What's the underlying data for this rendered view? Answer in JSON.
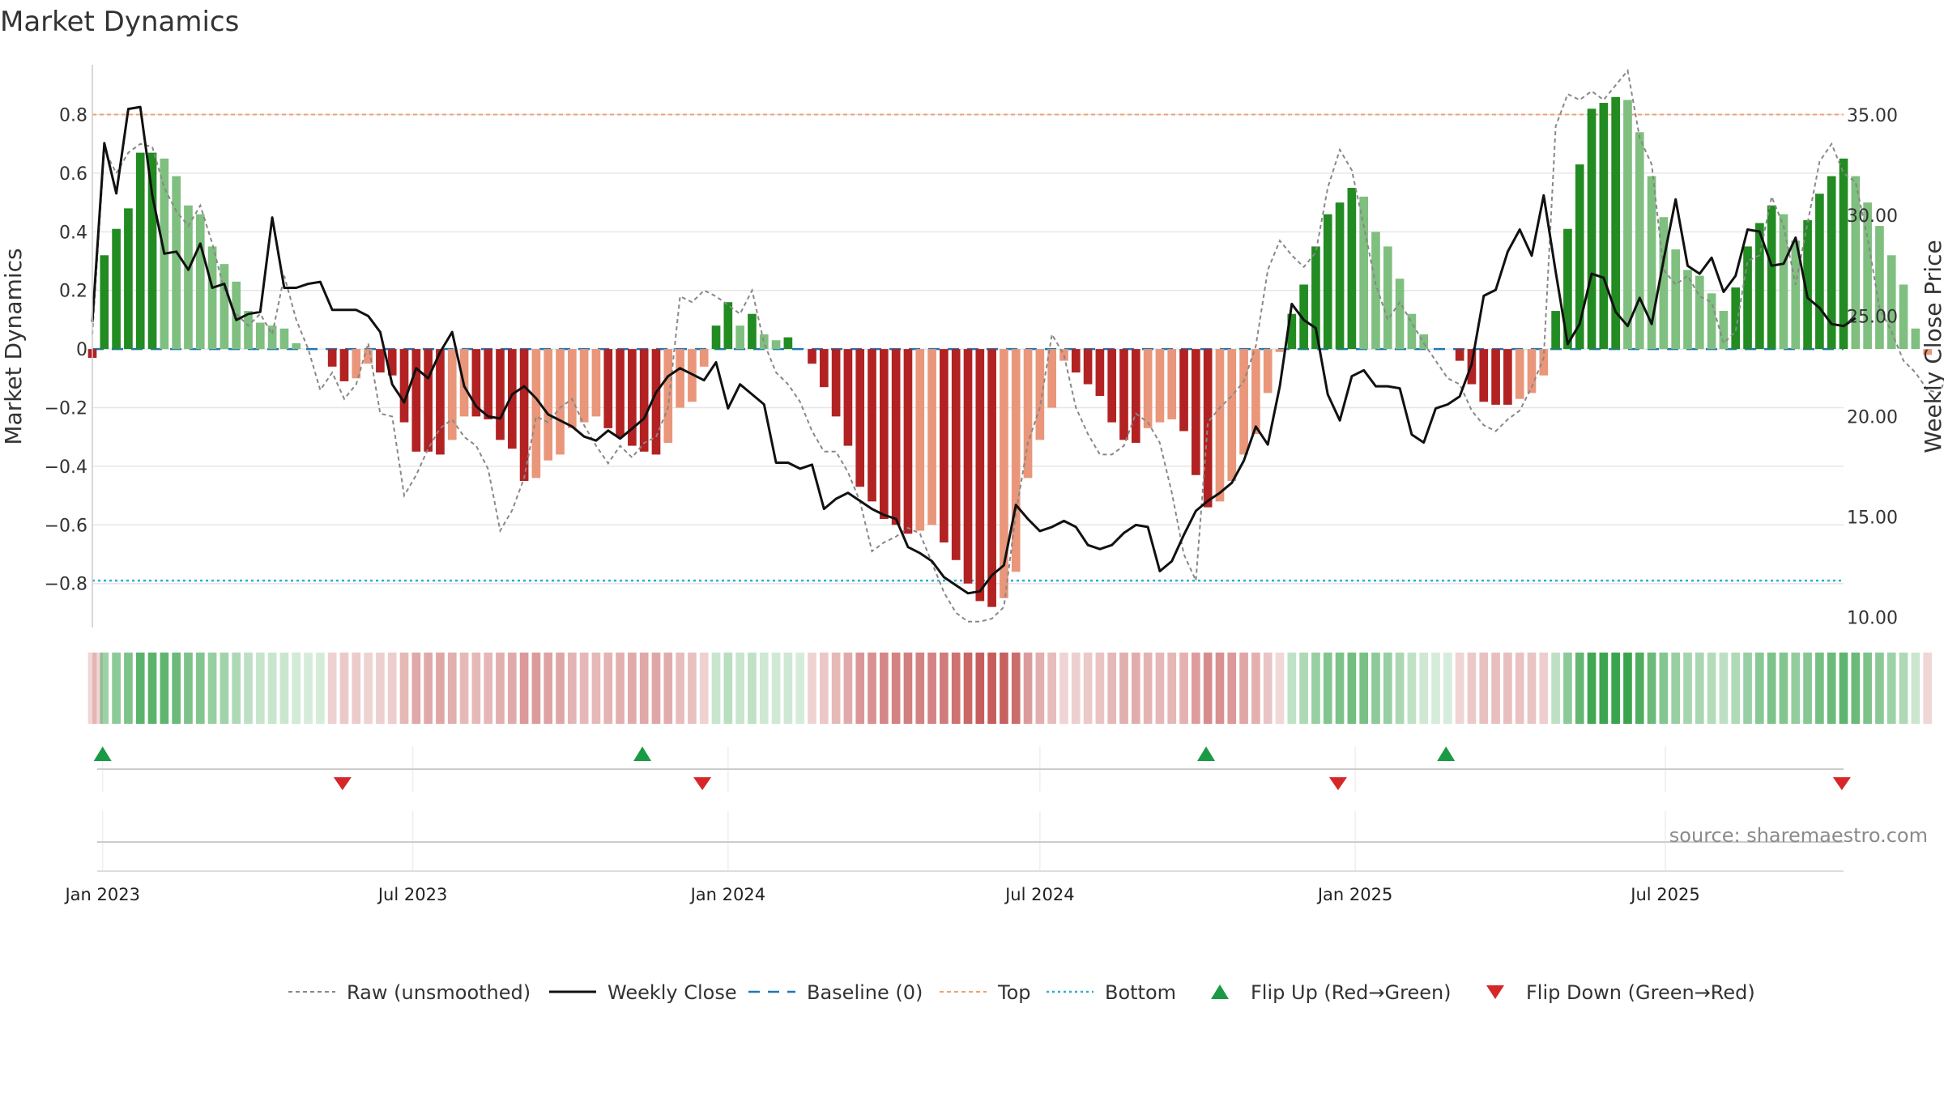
{
  "chart_data": {
    "type": "bar",
    "title": "Market Dynamics",
    "ylabel_left": "Market Dynamics",
    "ylabel_right": "Weekly Close Price",
    "left_ticks": [
      "0.8",
      "0.6",
      "0.4",
      "0.2",
      "0",
      "−0.2",
      "−0.4",
      "−0.6",
      "−0.8"
    ],
    "left_tick_values": [
      0.8,
      0.6,
      0.4,
      0.2,
      0,
      -0.2,
      -0.4,
      -0.6,
      -0.8
    ],
    "right_ticks": [
      "35.00",
      "30.00",
      "25.00",
      "20.00",
      "15.00",
      "10.00"
    ],
    "right_tick_values": [
      35,
      30,
      25,
      20,
      15,
      10
    ],
    "ylim_left": [
      -0.95,
      0.97
    ],
    "ylim_right": [
      9.5,
      37.5
    ],
    "top_level": 0.8,
    "bottom_level": -0.79,
    "baseline": 0,
    "x_start": "2022-12-26",
    "x_end": "2025-10-13",
    "x_ticks": [
      "Jan 2023",
      "Jul 2023",
      "Jan 2024",
      "Jul 2024",
      "Jan 2025",
      "Jul 2025"
    ],
    "x_tick_dates": [
      "2023-01-01",
      "2023-07-01",
      "2024-01-01",
      "2024-07-01",
      "2025-01-01",
      "2025-07-01"
    ],
    "bar_start": "2022-12-26",
    "bar_interval_days": 7,
    "bars": [
      -0.03,
      0.32,
      0.41,
      0.48,
      0.67,
      0.67,
      0.65,
      0.59,
      0.49,
      0.46,
      0.35,
      0.29,
      0.23,
      0.13,
      0.09,
      0.08,
      0.07,
      0.02,
      0,
      0,
      -0.06,
      -0.11,
      -0.1,
      -0.05,
      -0.08,
      -0.09,
      -0.25,
      -0.35,
      -0.35,
      -0.36,
      -0.31,
      -0.23,
      -0.23,
      -0.24,
      -0.31,
      -0.34,
      -0.45,
      -0.44,
      -0.38,
      -0.36,
      -0.27,
      -0.25,
      -0.23,
      -0.27,
      -0.3,
      -0.33,
      -0.35,
      -0.36,
      -0.32,
      -0.2,
      -0.18,
      -0.06,
      0.08,
      0.16,
      0.08,
      0.12,
      0.05,
      0.03,
      0.04,
      0,
      -0.05,
      -0.13,
      -0.23,
      -0.33,
      -0.47,
      -0.52,
      -0.58,
      -0.6,
      -0.63,
      -0.62,
      -0.6,
      -0.66,
      -0.72,
      -0.8,
      -0.86,
      -0.88,
      -0.85,
      -0.76,
      -0.44,
      -0.31,
      -0.2,
      -0.04,
      -0.08,
      -0.12,
      -0.16,
      -0.25,
      -0.31,
      -0.32,
      -0.27,
      -0.25,
      -0.24,
      -0.28,
      -0.43,
      -0.54,
      -0.52,
      -0.45,
      -0.36,
      -0.29,
      -0.15,
      -0.01,
      0.12,
      0.22,
      0.35,
      0.46,
      0.5,
      0.55,
      0.52,
      0.4,
      0.35,
      0.24,
      0.12,
      0.05,
      0,
      0,
      -0.04,
      -0.12,
      -0.18,
      -0.19,
      -0.19,
      -0.17,
      -0.15,
      -0.09,
      0.13,
      0.41,
      0.63,
      0.82,
      0.84,
      0.86,
      0.85,
      0.74,
      0.59,
      0.45,
      0.34,
      0.27,
      0.25,
      0.19,
      0.13,
      0.21,
      0.35,
      0.43,
      0.49,
      0.46,
      0.37,
      0.44,
      0.53,
      0.59,
      0.65,
      0.59,
      0.5,
      0.42,
      0.32,
      0.22,
      0.07,
      -0.02
    ],
    "raw": [
      0.05,
      0.68,
      0.6,
      0.67,
      0.7,
      0.69,
      0.55,
      0.47,
      0.42,
      0.49,
      0.36,
      0.2,
      0.12,
      0.08,
      0.12,
      0.05,
      0.25,
      0.1,
      0,
      -0.14,
      -0.08,
      -0.17,
      -0.12,
      0.02,
      -0.22,
      -0.23,
      -0.5,
      -0.43,
      -0.34,
      -0.27,
      -0.24,
      -0.3,
      -0.33,
      -0.41,
      -0.62,
      -0.55,
      -0.44,
      -0.23,
      -0.25,
      -0.2,
      -0.17,
      -0.26,
      -0.33,
      -0.39,
      -0.33,
      -0.37,
      -0.32,
      -0.3,
      -0.2,
      0.18,
      0.16,
      0.2,
      0.18,
      0.15,
      0.12,
      0.2,
      0.02,
      -0.08,
      -0.12,
      -0.18,
      -0.28,
      -0.35,
      -0.35,
      -0.42,
      -0.52,
      -0.69,
      -0.66,
      -0.64,
      -0.61,
      -0.63,
      -0.73,
      -0.83,
      -0.9,
      -0.93,
      -0.93,
      -0.92,
      -0.88,
      -0.56,
      -0.32,
      -0.2,
      0.05,
      -0.02,
      -0.2,
      -0.29,
      -0.36,
      -0.36,
      -0.33,
      -0.22,
      -0.25,
      -0.32,
      -0.49,
      -0.7,
      -0.79,
      -0.25,
      -0.2,
      -0.16,
      -0.11,
      0.01,
      0.27,
      0.37,
      0.32,
      0.28,
      0.33,
      0.55,
      0.68,
      0.61,
      0.42,
      0.22,
      0.1,
      0.16,
      0.09,
      0.02,
      -0.04,
      -0.1,
      -0.12,
      -0.21,
      -0.26,
      -0.28,
      -0.24,
      -0.21,
      -0.13,
      -0.03,
      0.76,
      0.87,
      0.85,
      0.88,
      0.85,
      0.9,
      0.95,
      0.72,
      0.63,
      0.27,
      0.22,
      0.25,
      0.18,
      0.16,
      0.02,
      0.06,
      0.3,
      0.32,
      0.52,
      0.42,
      0.22,
      0.43,
      0.64,
      0.7,
      0.6,
      0.57,
      0.38,
      0.14,
      0.06,
      -0.04,
      -0.08,
      -0.14,
      -0.15,
      -0.05
    ],
    "close": [
      24.7,
      33.6,
      31.1,
      35.3,
      35.4,
      31.0,
      28.1,
      28.2,
      27.3,
      28.6,
      26.4,
      26.6,
      24.8,
      25.1,
      25.2,
      29.9,
      26.4,
      26.4,
      26.6,
      26.7,
      25.3,
      25.3,
      25.3,
      25.0,
      24.2,
      21.6,
      20.7,
      22.4,
      21.9,
      23.2,
      24.2,
      21.5,
      20.5,
      20.0,
      19.9,
      21.1,
      21.5,
      20.9,
      20.1,
      19.8,
      19.5,
      19.0,
      18.8,
      19.3,
      18.9,
      19.4,
      19.9,
      21.2,
      22.0,
      22.4,
      22.1,
      21.8,
      22.7,
      20.4,
      21.6,
      21.1,
      20.6,
      17.7,
      17.7,
      17.4,
      17.6,
      15.4,
      15.9,
      16.2,
      15.8,
      15.4,
      15.1,
      14.9,
      13.5,
      13.2,
      12.8,
      12.0,
      11.6,
      11.2,
      11.3,
      12.1,
      12.6,
      15.6,
      14.9,
      14.3,
      14.5,
      14.8,
      14.5,
      13.6,
      13.4,
      13.6,
      14.2,
      14.6,
      14.5,
      12.3,
      12.8,
      14.1,
      15.3,
      15.8,
      16.2,
      16.7,
      17.8,
      19.5,
      18.6,
      21.5,
      25.6,
      24.8,
      24.4,
      21.1,
      19.8,
      22.0,
      22.3,
      21.5,
      21.5,
      21.4,
      19.1,
      18.7,
      20.4,
      20.6,
      21.0,
      22.6,
      26.0,
      26.3,
      28.2,
      29.3,
      28.0,
      31.0,
      27.2,
      23.6,
      24.6,
      27.1,
      26.9,
      25.2,
      24.5,
      25.9,
      24.6,
      27.8,
      30.8,
      27.5,
      27.1,
      27.9,
      26.2,
      27.0,
      29.3,
      29.2,
      27.5,
      27.6,
      28.9,
      25.9,
      25.4,
      24.6,
      24.5,
      24.9
    ],
    "series": [
      {
        "name": "Raw (unsmoothed)",
        "color": "#888888",
        "style": "dashed"
      },
      {
        "name": "Weekly Close",
        "color": "#111111",
        "style": "solid"
      },
      {
        "name": "Baseline (0)",
        "color": "#1f77b4",
        "style": "dashed"
      },
      {
        "name": "Top",
        "color": "#f0a070",
        "style": "dashed"
      },
      {
        "name": "Bottom",
        "color": "#2ab0d0",
        "style": "dotted"
      },
      {
        "name": "Flip Up (Red→Green)",
        "color": "#1a9a45",
        "marker": "triangle-up"
      },
      {
        "name": "Flip Down (Green→Red)",
        "color": "#d62728",
        "marker": "triangle-down"
      }
    ],
    "flip_up_dates": [
      "2023-01-01",
      "2023-11-12",
      "2024-10-06",
      "2025-02-23"
    ],
    "flip_down_dates": [
      "2023-05-21",
      "2023-12-17",
      "2024-12-22",
      "2025-10-12"
    ],
    "bar_colors": {
      "strong_pos": "#228b22",
      "weak_pos": "#7fbf7f",
      "strong_neg": "#b22222",
      "weak_neg": "#e9967a"
    },
    "legend_position": "bottom",
    "source": "source: sharemaestro.com"
  }
}
